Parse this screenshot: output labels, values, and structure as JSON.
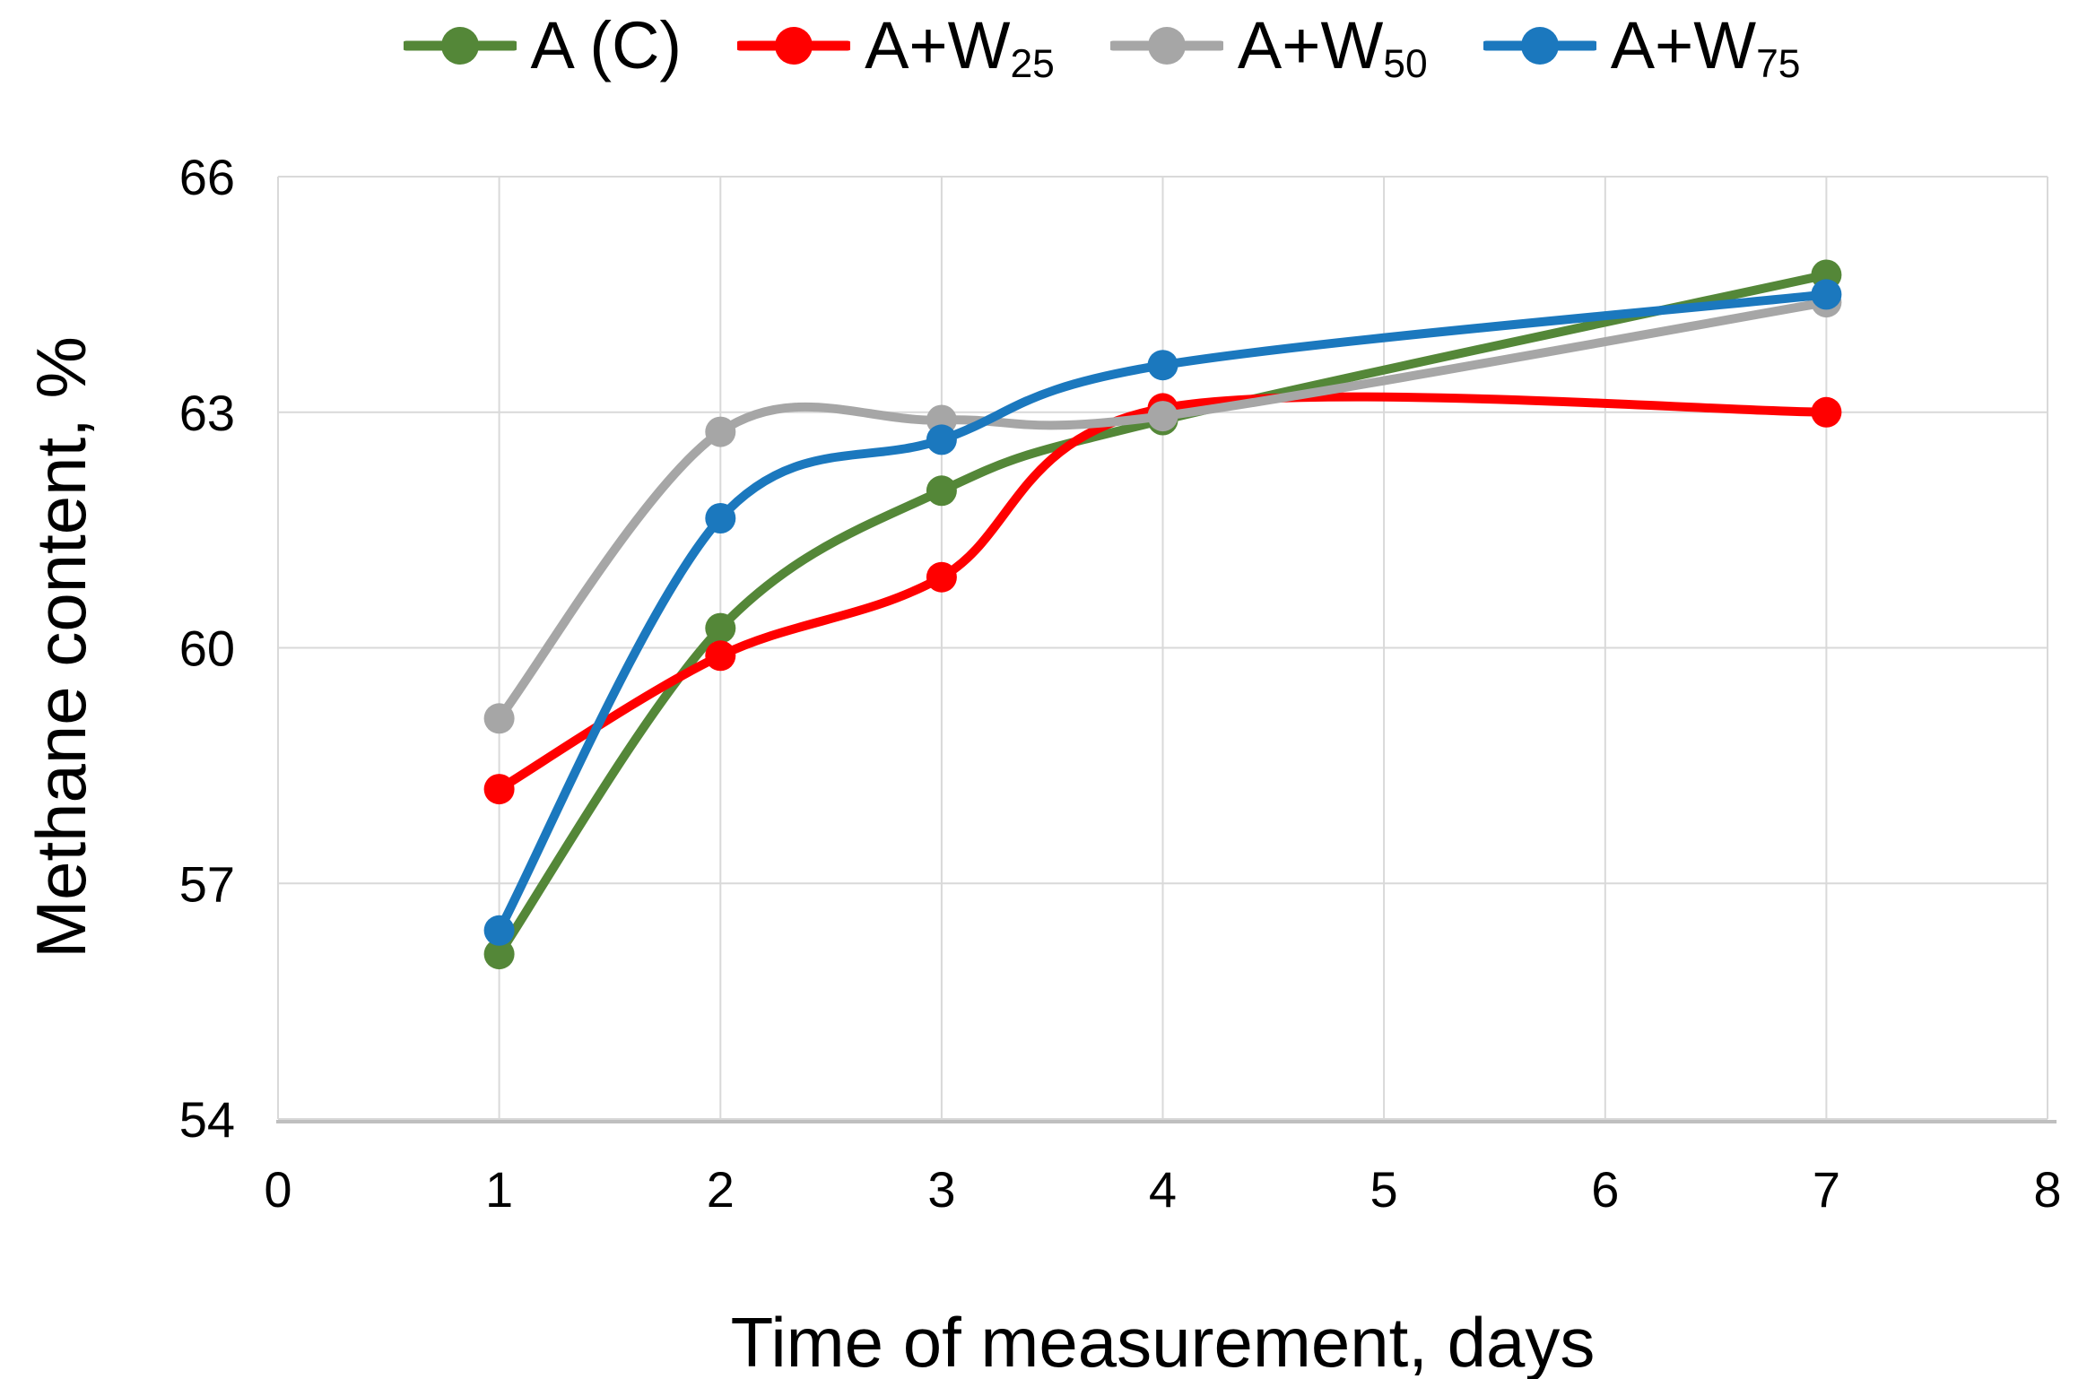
{
  "legend": {
    "items": [
      {
        "label": "A (C)",
        "subscript": "",
        "color": "#548738"
      },
      {
        "label": "A+W",
        "subscript": "25",
        "color": "#FF0000"
      },
      {
        "label": "A+W",
        "subscript": "50",
        "color": "#A6A6A6"
      },
      {
        "label": "A+W",
        "subscript": "75",
        "color": "#1B78BE"
      }
    ]
  },
  "chart_data": {
    "type": "line",
    "x": [
      1,
      2,
      3,
      4,
      7
    ],
    "series": [
      {
        "name": "A (C)",
        "color": "#548738",
        "values": [
          56.1,
          60.25,
          62.0,
          62.9,
          64.75
        ]
      },
      {
        "name": "A+W25",
        "color": "#FF0000",
        "values": [
          58.2,
          59.9,
          60.9,
          63.05,
          63.0
        ]
      },
      {
        "name": "A+W50",
        "color": "#A6A6A6",
        "values": [
          59.1,
          62.75,
          62.9,
          62.95,
          64.4
        ]
      },
      {
        "name": "A+W75",
        "color": "#1B78BE",
        "values": [
          56.4,
          61.65,
          62.65,
          63.6,
          64.5
        ]
      }
    ],
    "title": "",
    "xlabel": "Time of measurement, days",
    "ylabel": "Methane content, %",
    "xlim": [
      0,
      8
    ],
    "ylim": [
      54,
      66
    ],
    "x_ticks": [
      "0",
      "1",
      "2",
      "3",
      "4",
      "5",
      "6",
      "7",
      "8"
    ],
    "y_ticks": [
      "54",
      "57",
      "60",
      "63",
      "66"
    ],
    "grid": true,
    "smooth": true,
    "legend_position": "top"
  },
  "colors": {
    "grid": "#D9D9D9",
    "axis_line": "#BFBFBF",
    "tick_text": "#000000",
    "background": "#FFFFFF"
  }
}
